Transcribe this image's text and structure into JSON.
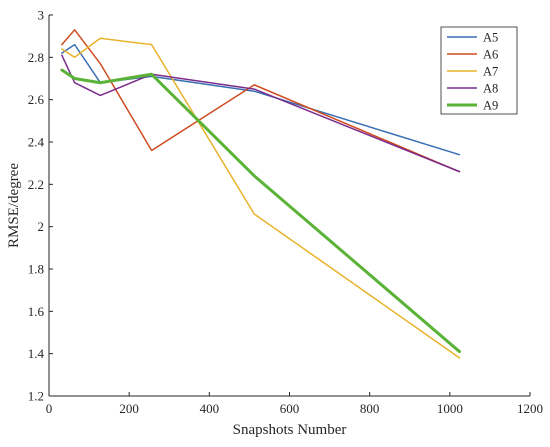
{
  "chart_data": {
    "type": "line",
    "title": "",
    "xlabel": "Snapshots Number",
    "ylabel": "RMSE/degree",
    "xlim": [
      0,
      1200
    ],
    "ylim": [
      1.2,
      3.0
    ],
    "xticks": [
      0,
      200,
      400,
      600,
      800,
      1000,
      1200
    ],
    "yticks": [
      1.2,
      1.4,
      1.6,
      1.8,
      2.0,
      2.2,
      2.4,
      2.6,
      2.8,
      3.0
    ],
    "xtick_labels": [
      "0",
      "200",
      "400",
      "600",
      "800",
      "1000",
      "1200"
    ],
    "ytick_labels": [
      "1.2",
      "1.4",
      "1.6",
      "1.8",
      "2",
      "2.2",
      "2.4",
      "2.6",
      "2.8",
      "3"
    ],
    "grid": false,
    "legend_position": "top-right",
    "x": [
      32,
      64,
      128,
      256,
      512,
      1024
    ],
    "series": [
      {
        "name": "A5",
        "color": "#3a6fb5",
        "line_width": 1.5,
        "values": [
          2.82,
          2.86,
          2.68,
          2.71,
          2.64,
          2.34
        ]
      },
      {
        "name": "A6",
        "color": "#d04c21",
        "line_width": 1.5,
        "values": [
          2.86,
          2.93,
          2.77,
          2.36,
          2.67,
          2.26
        ]
      },
      {
        "name": "A7",
        "color": "#e8b32a",
        "line_width": 1.5,
        "values": [
          2.84,
          2.8,
          2.89,
          2.86,
          2.06,
          1.38
        ]
      },
      {
        "name": "A8",
        "color": "#7b2d8d",
        "line_width": 1.5,
        "values": [
          2.81,
          2.68,
          2.62,
          2.72,
          2.65,
          2.26
        ]
      },
      {
        "name": "A9",
        "color": "#5ab337",
        "line_width": 3,
        "values": [
          2.74,
          2.7,
          2.68,
          2.72,
          2.24,
          1.41
        ]
      }
    ]
  }
}
